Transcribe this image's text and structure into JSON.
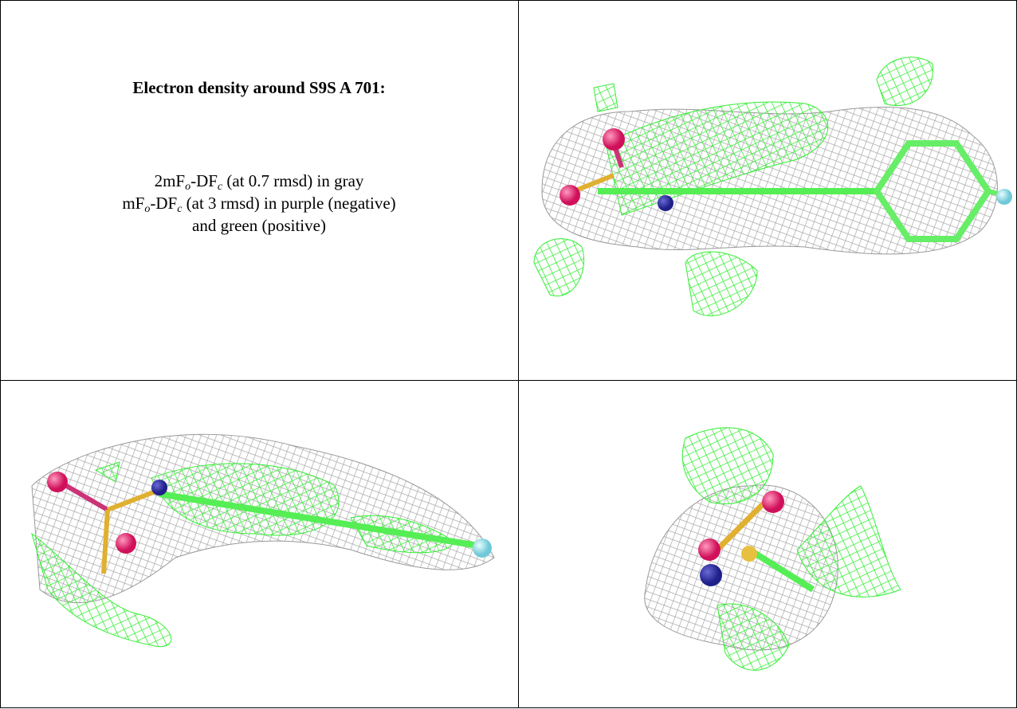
{
  "caption": {
    "title": "Electron density around S9S A 701:",
    "line1": [
      "2mF",
      "o",
      "-DF",
      "c",
      " (at 0.7 rmsd) in gray"
    ],
    "line2": [
      "mF",
      "o",
      "-DF",
      "c",
      " (at 3 rmsd) in purple (negative)"
    ],
    "line3": "and green (positive)"
  }
}
